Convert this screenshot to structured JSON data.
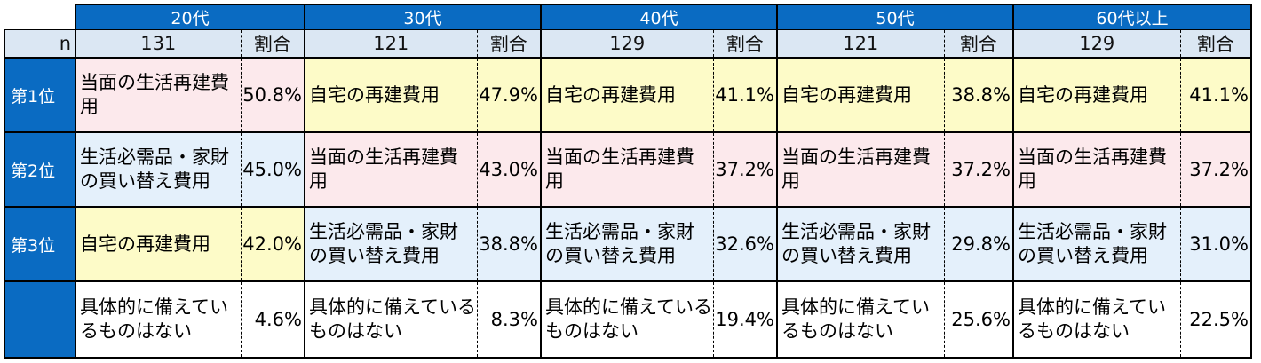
{
  "header": {
    "age_groups": [
      "20代",
      "30代",
      "40代",
      "50代",
      "60代以上"
    ],
    "n_label": "n",
    "share_label": "割合",
    "counts": [
      "131",
      "121",
      "129",
      "121",
      "129"
    ]
  },
  "rows": [
    {
      "rank": "第1位",
      "cells": [
        {
          "item": "当面の生活再建費用",
          "pct": "50.8%",
          "color": "#fce9ec"
        },
        {
          "item": "自宅の再建費用",
          "pct": "47.9%",
          "color": "#fdfbc8"
        },
        {
          "item": "自宅の再建費用",
          "pct": "41.1%",
          "color": "#fdfbc8"
        },
        {
          "item": "自宅の再建費用",
          "pct": "38.8%",
          "color": "#fdfbc8"
        },
        {
          "item": "自宅の再建費用",
          "pct": "41.1%",
          "color": "#fdfbc8"
        }
      ]
    },
    {
      "rank": "第2位",
      "cells": [
        {
          "item": "生活必需品・家財の買い替え費用",
          "pct": "45.0%",
          "color": "#e4f0fb"
        },
        {
          "item": "当面の生活再建費用",
          "pct": "43.0%",
          "color": "#fce9ec"
        },
        {
          "item": "当面の生活再建費用",
          "pct": "37.2%",
          "color": "#fce9ec"
        },
        {
          "item": "当面の生活再建費用",
          "pct": "37.2%",
          "color": "#fce9ec"
        },
        {
          "item": "当面の生活再建費用",
          "pct": "37.2%",
          "color": "#fce9ec"
        }
      ]
    },
    {
      "rank": "第3位",
      "cells": [
        {
          "item": "自宅の再建費用",
          "pct": "42.0%",
          "color": "#fdfbc8"
        },
        {
          "item": "生活必需品・家財の買い替え費用",
          "pct": "38.8%",
          "color": "#e4f0fb"
        },
        {
          "item": "生活必需品・家財の買い替え費用",
          "pct": "32.6%",
          "color": "#e4f0fb"
        },
        {
          "item": "生活必需品・家財の買い替え費用",
          "pct": "29.8%",
          "color": "#e4f0fb"
        },
        {
          "item": "生活必需品・家財の買い替え費用",
          "pct": "31.0%",
          "color": "#e4f0fb"
        }
      ]
    },
    {
      "rank": "",
      "cells": [
        {
          "item": "具体的に備えているものはない",
          "pct": "4.6%",
          "color": "#ffffff"
        },
        {
          "item": "具体的に備えているものはない",
          "pct": "8.3%",
          "color": "#ffffff"
        },
        {
          "item": "具体的に備えているものはない",
          "pct": "19.4%",
          "color": "#ffffff"
        },
        {
          "item": "具体的に備えているものはない",
          "pct": "25.6%",
          "color": "#ffffff"
        },
        {
          "item": "具体的に備えているものはない",
          "pct": "22.5%",
          "color": "#ffffff"
        }
      ]
    }
  ]
}
